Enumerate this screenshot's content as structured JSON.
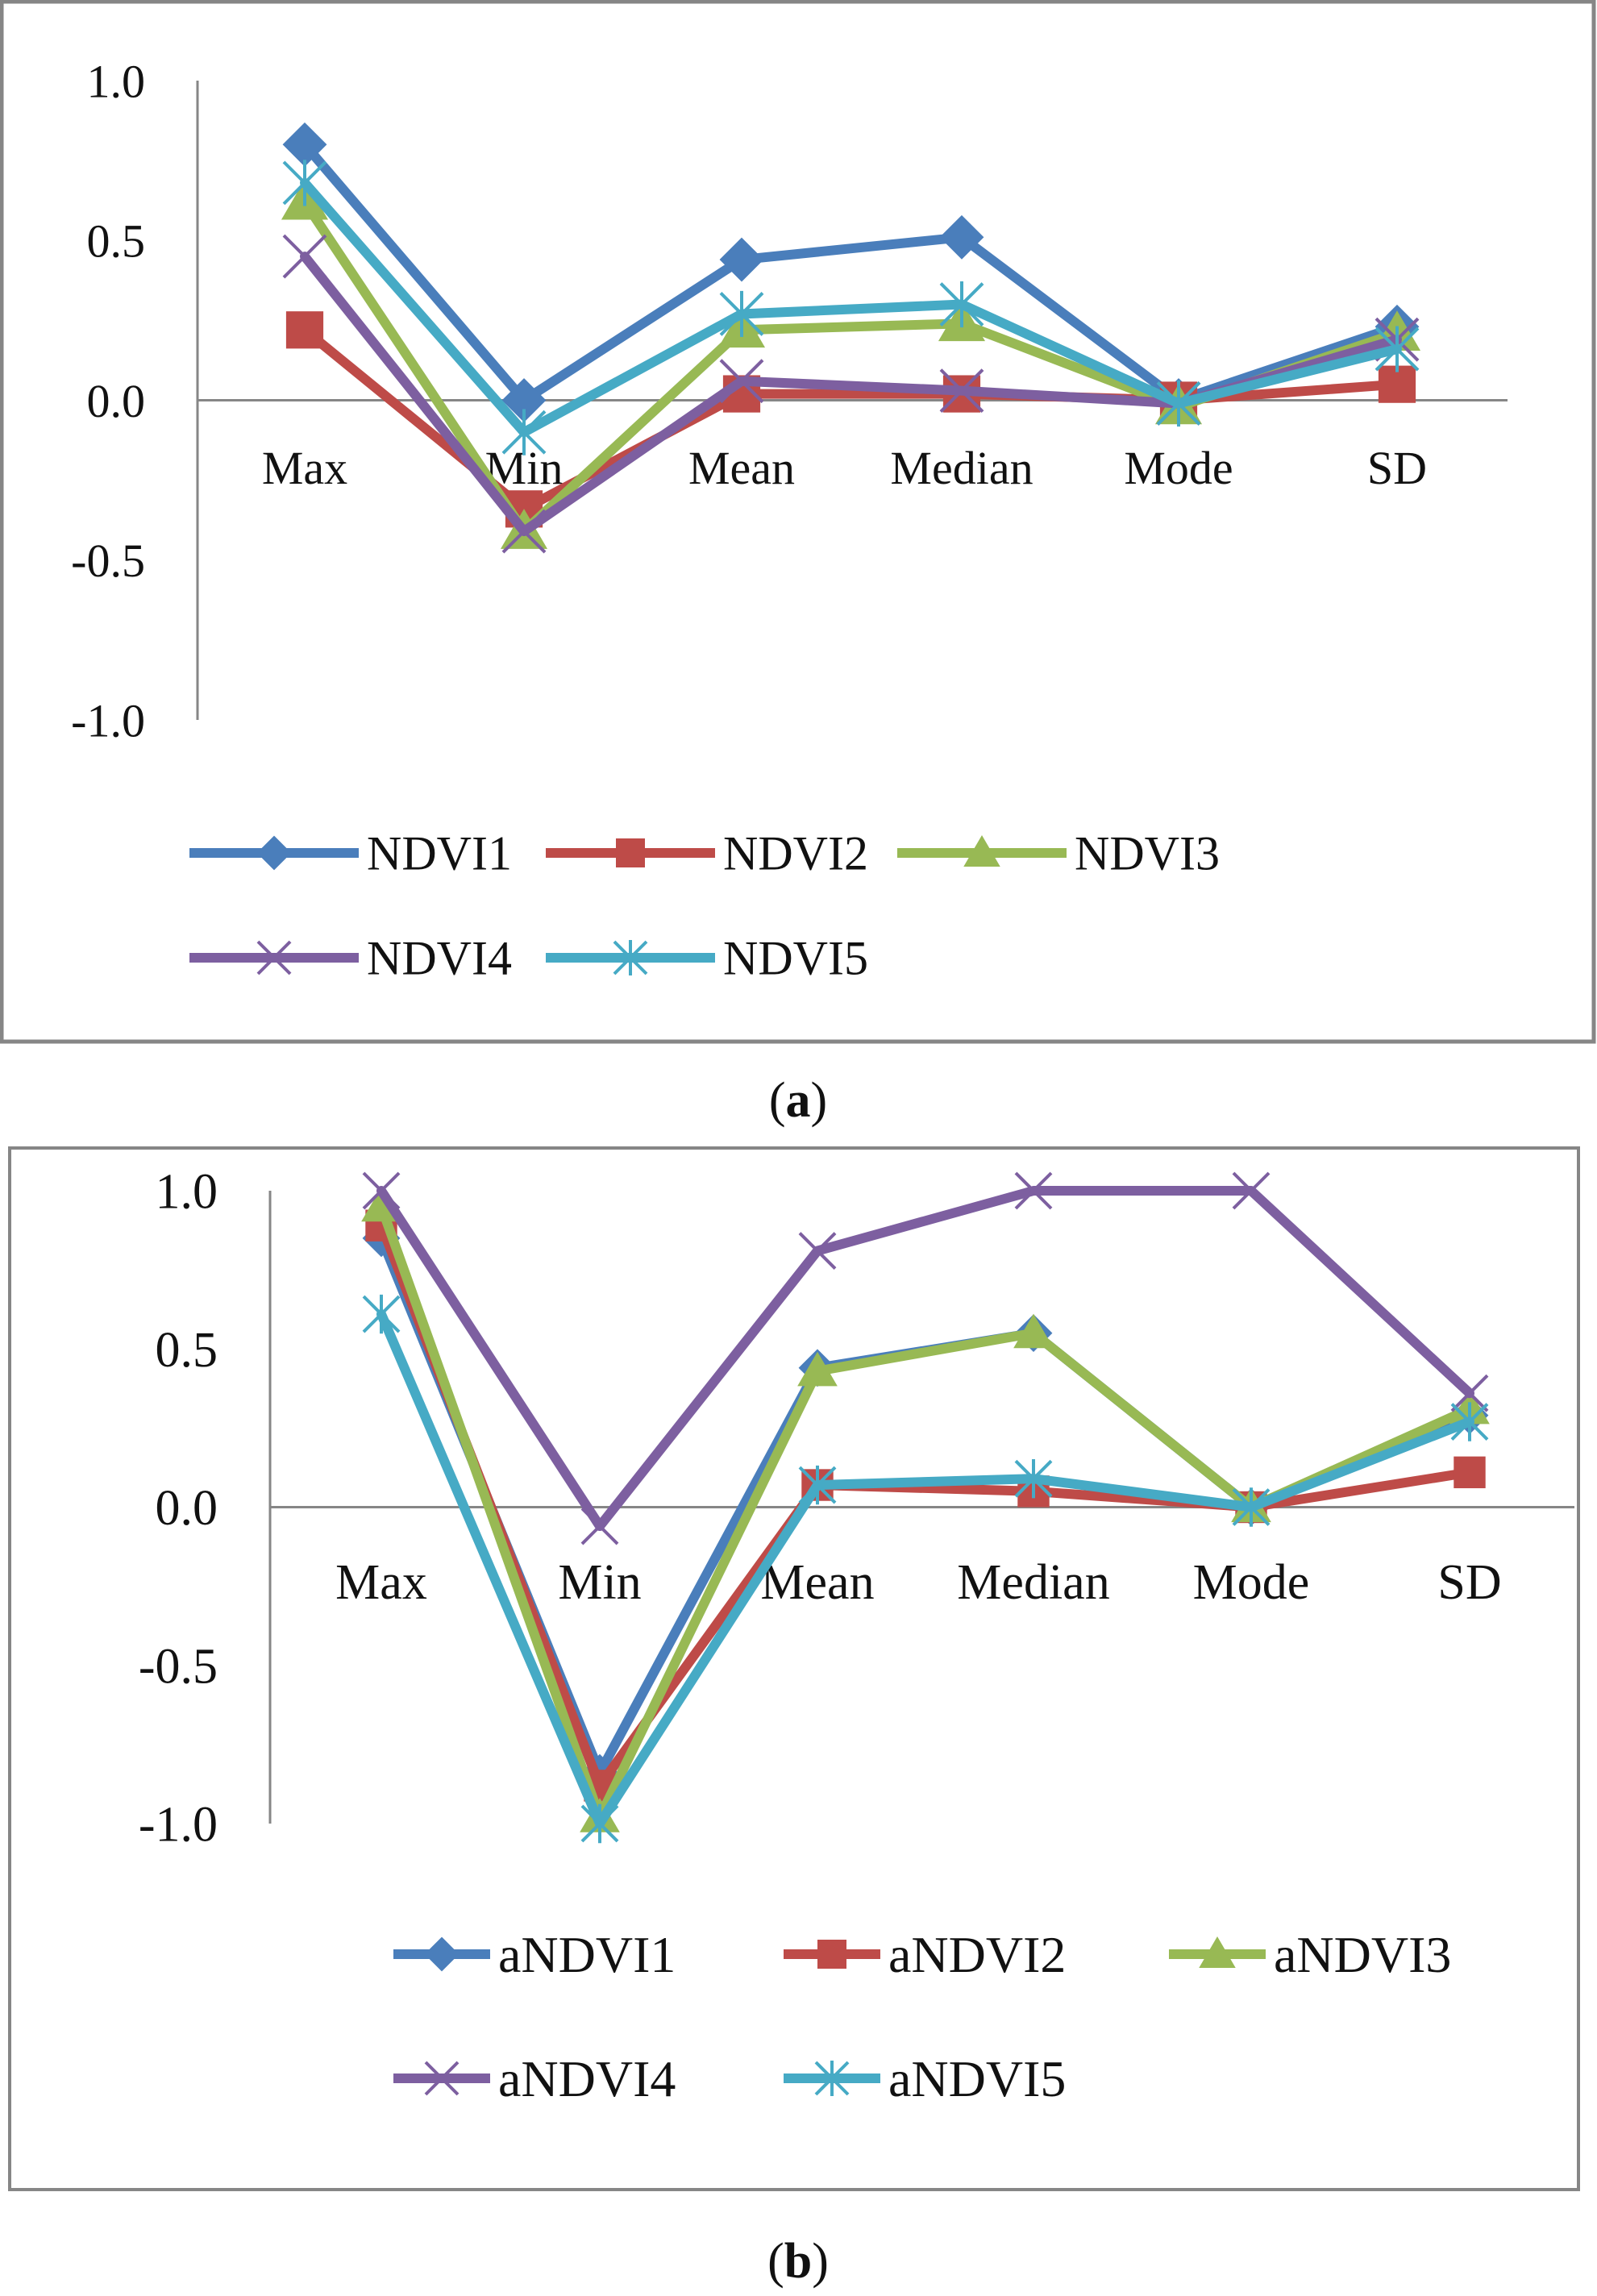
{
  "panels": [
    {
      "caption": "(a)",
      "caption_letter": "a",
      "chart_data": {
        "type": "line",
        "categories": [
          "Max",
          "Min",
          "Mean",
          "Median",
          "Mode",
          "SD"
        ],
        "ylim": [
          -1.0,
          1.0
        ],
        "yticks": [
          "1.0",
          "0.5",
          "0.0",
          "-0.5",
          "-1.0"
        ],
        "legend": "bottom",
        "grid": false,
        "series": [
          {
            "name": "NDVI1",
            "color": "#4a7ebb",
            "marker": "diamond",
            "values": [
              0.8,
              0.0,
              0.44,
              0.51,
              0.0,
              0.23
            ]
          },
          {
            "name": "NDVI2",
            "color": "#be4b48",
            "marker": "square",
            "values": [
              0.22,
              -0.34,
              0.02,
              0.02,
              0.0,
              0.05
            ]
          },
          {
            "name": "NDVI3",
            "color": "#98b954",
            "marker": "triangle",
            "values": [
              0.62,
              -0.41,
              0.22,
              0.24,
              -0.02,
              0.21
            ]
          },
          {
            "name": "NDVI4",
            "color": "#7d5fa0",
            "marker": "x",
            "values": [
              0.45,
              -0.41,
              0.06,
              0.03,
              -0.01,
              0.19
            ]
          },
          {
            "name": "NDVI5",
            "color": "#46aac5",
            "marker": "star",
            "values": [
              0.68,
              -0.1,
              0.27,
              0.3,
              -0.01,
              0.16
            ]
          }
        ]
      }
    },
    {
      "caption": "(b)",
      "caption_letter": "b",
      "chart_data": {
        "type": "line",
        "categories": [
          "Max",
          "Min",
          "Mean",
          "Median",
          "Mode",
          "SD"
        ],
        "ylim": [
          -1.0,
          1.0
        ],
        "yticks": [
          "1.0",
          "0.5",
          "0.0",
          "-0.5",
          "-1.0"
        ],
        "legend": "bottom",
        "grid": false,
        "series": [
          {
            "name": "aNDVI1",
            "color": "#4a7ebb",
            "marker": "diamond",
            "values": [
              0.85,
              -0.84,
              0.44,
              0.55,
              0.0,
              0.29
            ]
          },
          {
            "name": "aNDVI2",
            "color": "#be4b48",
            "marker": "square",
            "values": [
              0.89,
              -0.88,
              0.07,
              0.05,
              0.0,
              0.11
            ]
          },
          {
            "name": "aNDVI3",
            "color": "#98b954",
            "marker": "triangle",
            "values": [
              0.95,
              -0.98,
              0.43,
              0.55,
              0.0,
              0.31
            ]
          },
          {
            "name": "aNDVI4",
            "color": "#7d5fa0",
            "marker": "x",
            "values": [
              1.0,
              -0.06,
              0.81,
              1.0,
              1.0,
              0.36
            ]
          },
          {
            "name": "aNDVI5",
            "color": "#46aac5",
            "marker": "star",
            "values": [
              0.61,
              -1.0,
              0.07,
              0.09,
              0.0,
              0.27
            ]
          }
        ]
      }
    }
  ]
}
